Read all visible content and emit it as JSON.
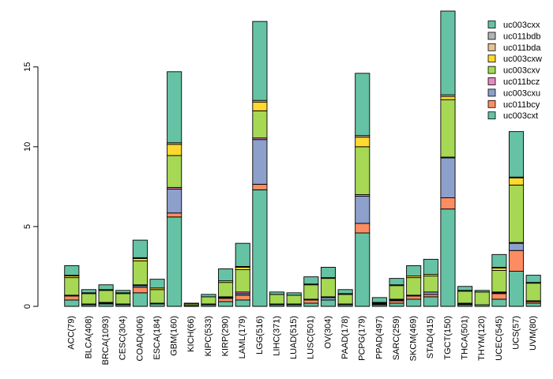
{
  "chart_data": {
    "type": "bar",
    "stacked": true,
    "title": "",
    "xlabel": "",
    "ylabel": "",
    "ylim": [
      0,
      18.5
    ],
    "yticks": [
      0,
      5,
      10,
      15
    ],
    "ytick_labels": [
      "0",
      "5",
      "10",
      "15"
    ],
    "legend_position": "top-right",
    "categories": [
      "ACC(79)",
      "BLCA(408)",
      "BRCA(1093)",
      "CESC(304)",
      "COAD(406)",
      "ESCA(184)",
      "GBM(160)",
      "KICH(66)",
      "KIPC(533)",
      "KIRP(290)",
      "LAML(179)",
      "LGG(516)",
      "LIHC(371)",
      "LUAD(515)",
      "LUSC(501)",
      "OV(304)",
      "PAAD(178)",
      "PCPG(179)",
      "PPAD(497)",
      "SARC(259)",
      "SKCM(469)",
      "STAD(415)",
      "TGCT(150)",
      "THCA(501)",
      "THYM(120)",
      "UCEC(545)",
      "UCS(57)",
      "UVM(80)"
    ],
    "series": [
      {
        "name": "uc003cxt",
        "color": "#66C2A5",
        "values": [
          0.4,
          0.1,
          0.15,
          0.1,
          0.85,
          0.15,
          5.6,
          0.05,
          0.1,
          0.3,
          0.4,
          7.3,
          0.1,
          0.1,
          0.2,
          0.4,
          0.1,
          4.6,
          0.1,
          0.2,
          0.45,
          0.6,
          6.1,
          0.1,
          0.1,
          0.45,
          2.2,
          0.2
        ]
      },
      {
        "name": "uc011bcy",
        "color": "#FC8D62",
        "values": [
          0.25,
          0.0,
          0.05,
          0.0,
          0.35,
          0.0,
          0.25,
          0.0,
          0.0,
          0.2,
          0.3,
          0.35,
          0.0,
          0.0,
          0.2,
          0.0,
          0.0,
          0.6,
          0.05,
          0.15,
          0.2,
          0.15,
          0.7,
          0.05,
          0.0,
          0.35,
          1.3,
          0.1
        ]
      },
      {
        "name": "uc003cxu",
        "color": "#8DA0CB",
        "values": [
          0.0,
          0.05,
          0.05,
          0.05,
          0.1,
          0.05,
          1.5,
          0.0,
          0.05,
          0.05,
          0.1,
          2.8,
          0.05,
          0.05,
          0.05,
          0.15,
          0.05,
          1.7,
          0.05,
          0.05,
          0.05,
          0.15,
          2.5,
          0.05,
          0.0,
          0.05,
          0.45,
          0.05
        ]
      },
      {
        "name": "uc011bcz",
        "color": "#E78AC3",
        "values": [
          0.05,
          0.0,
          0.0,
          0.0,
          0.05,
          0.0,
          0.1,
          0.0,
          0.0,
          0.05,
          0.1,
          0.1,
          0.0,
          0.0,
          0.0,
          0.05,
          0.0,
          0.1,
          0.0,
          0.05,
          0.0,
          0.0,
          0.05,
          0.0,
          0.0,
          0.05,
          0.05,
          0.0
        ]
      },
      {
        "name": "uc003cxv",
        "color": "#A6D854",
        "values": [
          1.1,
          0.65,
          0.75,
          0.65,
          1.5,
          0.85,
          2.0,
          0.1,
          0.45,
          0.9,
          1.4,
          1.7,
          0.6,
          0.55,
          0.9,
          1.15,
          0.6,
          3.0,
          0.0,
          0.85,
          1.1,
          1.0,
          3.6,
          0.75,
          0.8,
          1.35,
          3.6,
          1.1
        ]
      },
      {
        "name": "uc003cxw",
        "color": "#FFD92F",
        "values": [
          0.1,
          0.05,
          0.05,
          0.05,
          0.15,
          0.1,
          0.7,
          0.0,
          0.0,
          0.1,
          0.15,
          0.55,
          0.0,
          0.0,
          0.05,
          0.05,
          0.05,
          0.6,
          0.05,
          0.05,
          0.1,
          0.1,
          0.2,
          0.05,
          0.0,
          0.15,
          0.45,
          0.05
        ]
      },
      {
        "name": "uc011bda",
        "color": "#E5C494",
        "values": [
          0.05,
          0.0,
          0.0,
          0.0,
          0.05,
          0.0,
          0.1,
          0.0,
          0.0,
          0.0,
          0.05,
          0.1,
          0.0,
          0.0,
          0.0,
          0.0,
          0.0,
          0.1,
          0.0,
          0.0,
          0.0,
          0.0,
          0.1,
          0.0,
          0.0,
          0.05,
          0.05,
          0.0
        ]
      },
      {
        "name": "uc011bdb",
        "color": "#B3B3B3",
        "values": [
          0.0,
          0.0,
          0.0,
          0.0,
          0.0,
          0.0,
          0.0,
          0.0,
          0.0,
          0.0,
          0.0,
          0.0,
          0.0,
          0.0,
          0.0,
          0.0,
          0.0,
          0.0,
          0.0,
          0.0,
          0.0,
          0.0,
          0.0,
          0.0,
          0.0,
          0.0,
          0.0,
          0.0
        ]
      },
      {
        "name": "uc003cxx",
        "color": "#66C2A5",
        "values": [
          0.6,
          0.2,
          0.3,
          0.15,
          1.1,
          0.55,
          4.45,
          0.05,
          0.15,
          0.75,
          1.45,
          4.95,
          0.15,
          0.15,
          0.45,
          0.65,
          0.25,
          3.9,
          0.3,
          0.4,
          0.65,
          0.95,
          5.25,
          0.25,
          0.1,
          0.8,
          2.85,
          0.45
        ]
      }
    ]
  }
}
